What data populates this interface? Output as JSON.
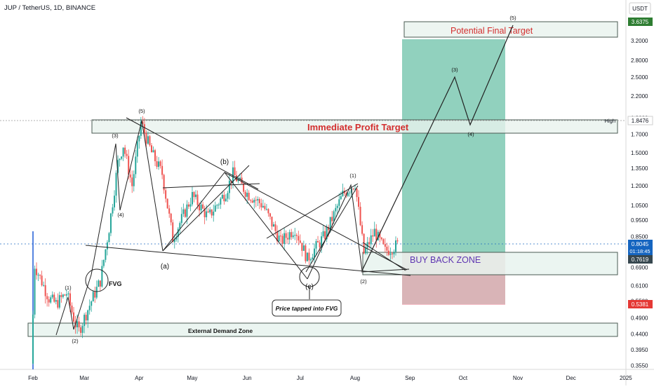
{
  "header": {
    "title": "JUP / TetherUS, 1D, BINANCE"
  },
  "colors": {
    "up": "#26a69a",
    "down": "#ef5350",
    "zone_fill": "#e8f3ee",
    "zone_stroke": "#4a5a52",
    "profit_fill": "#6cc2a8",
    "loss_fill": "#f1a9b4",
    "target_text": "#d32f2f",
    "buyback_text": "#5e35b1",
    "price_badge": "#1565c0",
    "dark_badge": "#37474f",
    "target_badge": "#2e7d32",
    "stop_badge": "#e53935"
  },
  "chart_data": {
    "type": "candlestick",
    "symbol": "JUP / TetherUS",
    "timeframe": "1D",
    "exchange": "BINANCE",
    "y_axis": {
      "unit": "USDT",
      "scale": "log",
      "range": [
        0.34,
        4.1
      ],
      "ticks": [
        "3.2000",
        "2.8000",
        "2.5000",
        "2.2000",
        "1.9000",
        "1.7000",
        "1.5000",
        "1.3500",
        "1.2000",
        "1.0500",
        "0.9500",
        "0.8500",
        "0.6900",
        "0.6100",
        "0.5500",
        "0.4900",
        "0.4400",
        "0.3950",
        "0.3550"
      ]
    },
    "x_axis": {
      "labels": [
        "Feb",
        "Mar",
        "Apr",
        "May",
        "Jun",
        "Jul",
        "Aug",
        "Sep",
        "Oct",
        "Nov",
        "Dec",
        "2025"
      ]
    },
    "price_path": [
      [
        "2024-01-31",
        0.36
      ],
      [
        "2024-02-02",
        0.7
      ],
      [
        "2024-02-10",
        0.56
      ],
      [
        "2024-02-14",
        0.54
      ],
      [
        "2024-02-20",
        0.58
      ],
      [
        "2024-02-25",
        0.47
      ],
      [
        "2024-02-27",
        0.45
      ],
      [
        "2024-03-05",
        0.55
      ],
      [
        "2024-03-10",
        0.63
      ],
      [
        "2024-03-15",
        0.9
      ],
      [
        "2024-03-20",
        1.4
      ],
      [
        "2024-03-23",
        1.58
      ],
      [
        "2024-03-28",
        1.2
      ],
      [
        "2024-04-02",
        1.84
      ],
      [
        "2024-04-08",
        1.5
      ],
      [
        "2024-04-14",
        1.3
      ],
      [
        "2024-04-20",
        0.84
      ],
      [
        "2024-05-01",
        1.12
      ],
      [
        "2024-05-10",
        0.97
      ],
      [
        "2024-05-20",
        1.15
      ],
      [
        "2024-05-24",
        1.3
      ],
      [
        "2024-06-01",
        1.14
      ],
      [
        "2024-06-10",
        1.05
      ],
      [
        "2024-06-20",
        0.82
      ],
      [
        "2024-06-28",
        0.9
      ],
      [
        "2024-07-05",
        0.73
      ],
      [
        "2024-07-15",
        0.86
      ],
      [
        "2024-07-25",
        1.13
      ],
      [
        "2024-08-01",
        1.22
      ],
      [
        "2024-08-06",
        0.76
      ],
      [
        "2024-08-12",
        0.88
      ],
      [
        "2024-08-18",
        0.77
      ],
      [
        "2024-08-25",
        0.8045
      ]
    ],
    "labels": {
      "symbol_currency": "USDT",
      "current_price": "0.8045",
      "countdown": "01:18:45",
      "price_0761": "0.7619",
      "target_price": "3.6375",
      "stop_price": "0.5381",
      "high_price": "1.8476",
      "high_label": "High"
    },
    "zones": [
      {
        "name": "Potential Final Target",
        "from": 3.15,
        "to": 3.85
      },
      {
        "name": "Immediate Profit Target",
        "from": 1.74,
        "to": 1.92
      },
      {
        "name": "BUY BACK ZONE",
        "from": 0.67,
        "to": 0.76
      },
      {
        "name": "External Demand Zone",
        "from": 0.425,
        "to": 0.475
      }
    ],
    "projection": [
      [
        "2024-08-06",
        0.76
      ],
      [
        "2024-09-28",
        2.5
      ],
      [
        "2024-10-08",
        1.74
      ],
      [
        "2024-10-27",
        3.9
      ]
    ],
    "wave_labels": [
      "(1)",
      "(2)",
      "(3)",
      "(4)",
      "(5)",
      "(a)",
      "(b)",
      "(c)",
      "(1)",
      "(2)",
      "(3)",
      "(4)",
      "(5)"
    ],
    "annotations": {
      "fvg": "FVG",
      "tapped": "Price tapped into FVG",
      "demand": "External Demand Zone",
      "immediate": "Immediate Profit Target",
      "final": "Potential Final Target",
      "buyback": "BUY BACK ZONE"
    }
  }
}
